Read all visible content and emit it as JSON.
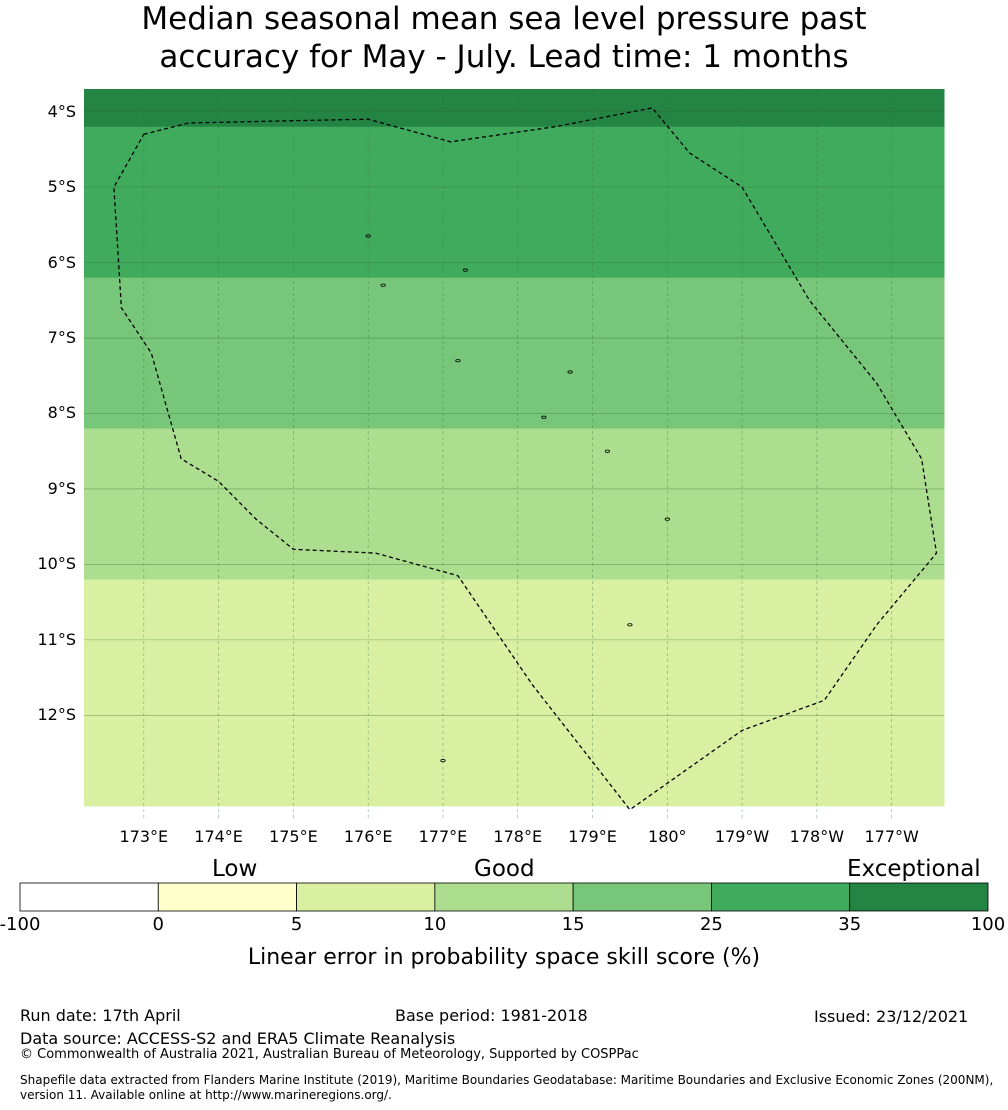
{
  "title_line1": "Median seasonal mean sea level pressure past",
  "title_line2": "accuracy for May - July. Lead time: 1 months",
  "colors": {
    "c1": "#ffffcc",
    "c2": "#d9f0a3",
    "c3": "#addd8e",
    "c4": "#78c679",
    "c5": "#41ab5d",
    "c6": "#238443",
    "gridline": "#2e6b3a",
    "boundary": "#000000"
  },
  "chart_data": {
    "type": "heatmap",
    "title": "Median seasonal mean sea level pressure past accuracy for May - July. Lead time: 1 months",
    "lat_labels": [
      "4°S",
      "5°S",
      "6°S",
      "7°S",
      "8°S",
      "9°S",
      "10°S",
      "11°S",
      "12°S"
    ],
    "lon_labels": [
      "173°E",
      "174°E",
      "175°E",
      "176°E",
      "177°E",
      "178°E",
      "179°E",
      "180°",
      "179°W",
      "178°W",
      "177°W"
    ],
    "lat_values": [
      -4,
      -5,
      -6,
      -7,
      -8,
      -9,
      -10,
      -11,
      -12
    ],
    "lon_values": [
      173,
      174,
      175,
      176,
      177,
      178,
      179,
      180,
      181,
      182,
      183
    ],
    "x_range": [
      172.2,
      183.7
    ],
    "y_range": [
      -13.4,
      -3.7
    ],
    "grid": true,
    "cell_size_deg": 0.5,
    "cells_origin": {
      "lon": 172.2,
      "lat": -3.7
    },
    "grid_values": [
      [
        5,
        5,
        5,
        5,
        5,
        5,
        5,
        5,
        5,
        5,
        5,
        5,
        5,
        5,
        5,
        5,
        5,
        5,
        5,
        5,
        5,
        5,
        5
      ],
      [
        4,
        4,
        4,
        4,
        4,
        4,
        4,
        4,
        4,
        4,
        4,
        4,
        4,
        4,
        4,
        4,
        4,
        4,
        4,
        4,
        4,
        4,
        4
      ],
      [
        4,
        4,
        4,
        4,
        4,
        4,
        4,
        4,
        4,
        4,
        4,
        4,
        4,
        4,
        4,
        4,
        4,
        4,
        4,
        4,
        4,
        4,
        4
      ],
      [
        4,
        4,
        4,
        4,
        4,
        4,
        4,
        4,
        4,
        4,
        4,
        4,
        4,
        4,
        4,
        4,
        4,
        4,
        4,
        4,
        4,
        4,
        4
      ],
      [
        4,
        4,
        4,
        4,
        4,
        4,
        4,
        4,
        4,
        4,
        4,
        4,
        4,
        4,
        4,
        4,
        4,
        4,
        4,
        4,
        4,
        4,
        4
      ],
      [
        3,
        3,
        3,
        3,
        3,
        3,
        3,
        3,
        3,
        3,
        3,
        3,
        3,
        3,
        3,
        3,
        3,
        3,
        3,
        3,
        3,
        3,
        3
      ],
      [
        3,
        3,
        3,
        3,
        3,
        3,
        3,
        3,
        3,
        3,
        3,
        3,
        3,
        3,
        3,
        3,
        3,
        3,
        3,
        3,
        3,
        3,
        3
      ],
      [
        3,
        3,
        3,
        3,
        3,
        3,
        3,
        3,
        3,
        3,
        3,
        3,
        3,
        3,
        3,
        3,
        3,
        3,
        3,
        3,
        3,
        3,
        3
      ],
      [
        3,
        3,
        3,
        3,
        3,
        3,
        3,
        3,
        3,
        3,
        3,
        3,
        3,
        3,
        3,
        3,
        3,
        3,
        3,
        3,
        3,
        3,
        3
      ],
      [
        2,
        2,
        2,
        2,
        2,
        2,
        2,
        2,
        2,
        2,
        2,
        2,
        2,
        2,
        2,
        2,
        2,
        2,
        2,
        2,
        2,
        2,
        2
      ],
      [
        2,
        2,
        2,
        2,
        2,
        2,
        2,
        2,
        2,
        2,
        2,
        2,
        2,
        2,
        2,
        2,
        2,
        2,
        2,
        2,
        2,
        2,
        2
      ],
      [
        2,
        2,
        2,
        2,
        2,
        2,
        2,
        2,
        2,
        2,
        2,
        2,
        2,
        2,
        2,
        2,
        2,
        2,
        2,
        2,
        2,
        2,
        2
      ],
      [
        2,
        2,
        2,
        2,
        2,
        2,
        2,
        2,
        2,
        2,
        2,
        2,
        2,
        2,
        2,
        2,
        2,
        2,
        2,
        2,
        2,
        2,
        2
      ],
      [
        1,
        1,
        1,
        1,
        1,
        1,
        1,
        1,
        1,
        1,
        1,
        1,
        1,
        1,
        1,
        1,
        1,
        1,
        1,
        1,
        1,
        1,
        1
      ],
      [
        1,
        1,
        1,
        1,
        1,
        1,
        1,
        1,
        1,
        1,
        1,
        1,
        1,
        1,
        1,
        1,
        1,
        1,
        1,
        1,
        1,
        1,
        1
      ],
      [
        1,
        1,
        1,
        1,
        1,
        1,
        1,
        1,
        1,
        1,
        1,
        1,
        1,
        1,
        1,
        1,
        1,
        1,
        1,
        1,
        1,
        1,
        1
      ],
      [
        1,
        1,
        1,
        1,
        1,
        1,
        1,
        1,
        1,
        1,
        1,
        1,
        1,
        1,
        1,
        1,
        1,
        1,
        1,
        1,
        1,
        1,
        1
      ],
      [
        1,
        1,
        1,
        1,
        1,
        1,
        1,
        1,
        1,
        1,
        1,
        1,
        1,
        1,
        1,
        1,
        1,
        1,
        1,
        1,
        1,
        1,
        1
      ],
      [
        1,
        1,
        1,
        1,
        1,
        1,
        1,
        1,
        1,
        1,
        1,
        1,
        1,
        1,
        1,
        1,
        1,
        1,
        1,
        1,
        1,
        1,
        1
      ]
    ],
    "colorbar": {
      "title": "Linear error in probability space skill score (%)",
      "ticks": [
        "-100",
        "0",
        "5",
        "10",
        "15",
        "25",
        "35",
        "100"
      ],
      "categories": [
        "Low",
        "Good",
        "Exceptional"
      ]
    },
    "eez_boundary": [
      [
        173.0,
        -4.3
      ],
      [
        173.6,
        -4.15
      ],
      [
        175.0,
        -4.12
      ],
      [
        176.0,
        -4.1
      ],
      [
        177.1,
        -4.4
      ],
      [
        178.5,
        -4.2
      ],
      [
        179.8,
        -3.95
      ],
      [
        180.3,
        -4.55
      ],
      [
        181.0,
        -5.0
      ],
      [
        181.9,
        -6.5
      ],
      [
        182.8,
        -7.6
      ],
      [
        183.4,
        -8.6
      ],
      [
        183.6,
        -9.85
      ],
      [
        182.8,
        -10.8
      ],
      [
        182.1,
        -11.8
      ],
      [
        181.0,
        -12.2
      ],
      [
        179.5,
        -13.25
      ],
      [
        178.2,
        -11.6
      ],
      [
        177.2,
        -10.15
      ],
      [
        176.1,
        -9.85
      ],
      [
        175.0,
        -9.8
      ],
      [
        174.5,
        -9.4
      ],
      [
        174.0,
        -8.9
      ],
      [
        173.5,
        -8.6
      ],
      [
        173.1,
        -7.2
      ],
      [
        172.7,
        -6.6
      ],
      [
        172.6,
        -5.0
      ],
      [
        173.0,
        -4.3
      ]
    ],
    "islands": [
      [
        176.0,
        -5.65
      ],
      [
        177.3,
        -6.1
      ],
      [
        176.2,
        -6.3
      ],
      [
        177.2,
        -7.3
      ],
      [
        178.7,
        -7.45
      ],
      [
        178.35,
        -8.05
      ],
      [
        179.2,
        -8.5
      ],
      [
        180.0,
        -9.4
      ],
      [
        179.5,
        -10.8
      ],
      [
        177.0,
        -12.6
      ]
    ]
  },
  "footer": {
    "run_date": "Run date: 17th April",
    "base_period": "Base period: 1981-2018",
    "issued": "Issued: 23/12/2021",
    "data_source": "Data source: ACCESS-S2 and ERA5 Climate Reanalysis",
    "copyright": "© Commonwealth of Australia 2021, Australian Bureau of Meteorology, Supported by COSPPac",
    "shapefile": "Shapefile data extracted from Flanders Marine Institute (2019), Maritime Boundaries Geodatabase: Maritime Boundaries and Exclusive Economic Zones (200NM), version 11. Available online at http://www.marineregions.org/."
  }
}
